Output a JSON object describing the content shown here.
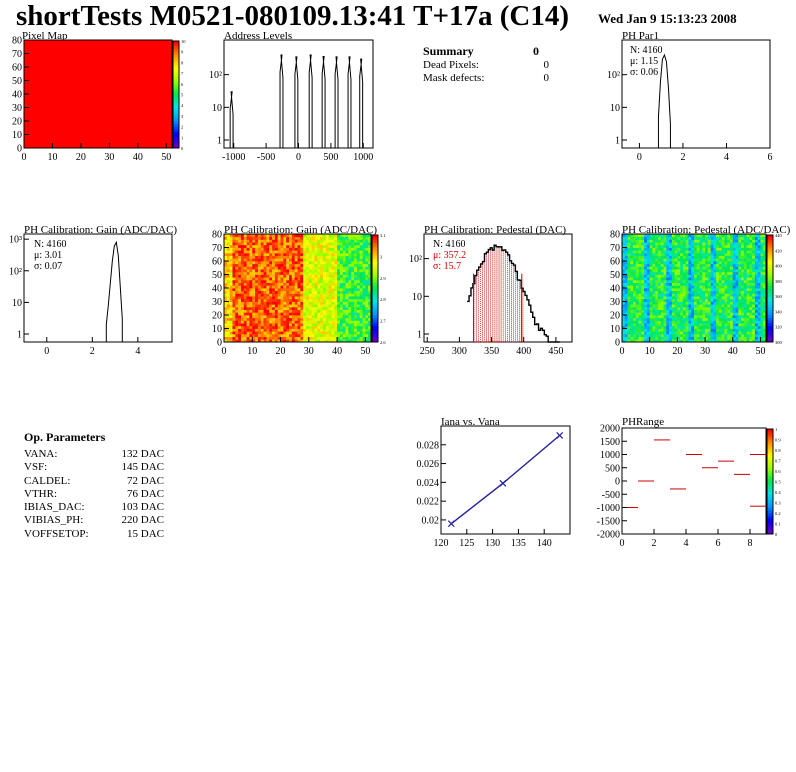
{
  "header": {
    "title": "shortTests M0521-080109.13:41 T+17a (C14)",
    "date": "Wed Jan  9 15:13:23 2008"
  },
  "summary": {
    "title": "Summary",
    "title_value": "0",
    "rows": [
      {
        "label": "Dead Pixels:",
        "value": "0"
      },
      {
        "label": "Mask defects:",
        "value": "0"
      }
    ]
  },
  "op_params": {
    "title": "Op. Parameters",
    "rows": [
      {
        "label": "VANA:",
        "value": "132 DAC"
      },
      {
        "label": "VSF:",
        "value": "145 DAC"
      },
      {
        "label": "CALDEL:",
        "value": "72 DAC"
      },
      {
        "label": "VTHR:",
        "value": "76 DAC"
      },
      {
        "label": "IBIAS_DAC:",
        "value": "103 DAC"
      },
      {
        "label": "VIBIAS_PH:",
        "value": "220 DAC"
      },
      {
        "label": "VOFFSETOP:",
        "value": "15 DAC"
      }
    ]
  },
  "colors": {
    "red": "#ff0000",
    "blue": "#2020a0",
    "darkred": "#cc0000"
  },
  "chart_data": [
    {
      "id": "pixelmap",
      "type": "heatmap",
      "title": "Pixel Map",
      "xlim": [
        0,
        52
      ],
      "ylim": [
        0,
        80
      ],
      "xticks": [
        "0",
        "10",
        "20",
        "30",
        "40",
        "50"
      ],
      "yticks": [
        "0",
        "10",
        "20",
        "30",
        "40",
        "50",
        "60",
        "70",
        "80"
      ],
      "value": 10,
      "zticks": [
        "10",
        "9",
        "8",
        "7",
        "6",
        "5",
        "4",
        "3",
        "2",
        "1",
        "0"
      ]
    },
    {
      "id": "addrlevels",
      "type": "line",
      "title": "Address Levels",
      "log_y": true,
      "xticks": [
        "-1000",
        "-500",
        "0",
        "500",
        "1000"
      ],
      "yticks": [
        "1",
        "10",
        "10²"
      ],
      "peaks": [
        -1030,
        -260,
        -30,
        190,
        390,
        590,
        790,
        970
      ],
      "peak_values": [
        30,
        400,
        350,
        400,
        360,
        350,
        350,
        300
      ]
    },
    {
      "id": "phpar1",
      "type": "line",
      "title": "PH Par1",
      "log_y": true,
      "xticks": [
        "0",
        "2",
        "4",
        "6"
      ],
      "yticks": [
        "1",
        "10",
        "10²"
      ],
      "stats": [
        "N: 4160",
        "μ: 1.15",
        "σ: 0.06"
      ],
      "peak_x": 1.15,
      "peak_value": 400
    },
    {
      "id": "gain1d",
      "type": "line",
      "title": "PH Calibration: Gain (ADC/DAC)",
      "log_y": true,
      "xticks": [
        "0",
        "2",
        "4"
      ],
      "yticks": [
        "1",
        "10",
        "10²",
        "10³"
      ],
      "stats": [
        "N: 4160",
        "μ: 3.01",
        "σ: 0.07"
      ],
      "peak_x": 3.01,
      "peak_value": 800
    },
    {
      "id": "gain2d",
      "type": "heatmap",
      "title": "PH Calibration: Gain (ADC/DAC)",
      "xlim": [
        0,
        52
      ],
      "ylim": [
        0,
        80
      ],
      "xticks": [
        "0",
        "10",
        "20",
        "30",
        "40",
        "50"
      ],
      "yticks": [
        "0",
        "10",
        "20",
        "30",
        "40",
        "50",
        "60",
        "70",
        "80"
      ],
      "zticks": [
        "3.1",
        "3",
        "2.9",
        "2.8",
        "2.7",
        "2.6"
      ]
    },
    {
      "id": "pedestal1d",
      "type": "line",
      "title": "PH Calibration: Pedestal (DAC)",
      "log_y": true,
      "xticks": [
        "250",
        "300",
        "350",
        "400",
        "450"
      ],
      "yticks": [
        "1",
        "10",
        "10²"
      ],
      "stats": [
        "N: 4160"
      ],
      "fit_stats": [
        "μ: 357.2",
        "σ: 15.7"
      ],
      "mean": 357.2,
      "sigma": 15.7,
      "cut_low": 322,
      "cut_high": 397
    },
    {
      "id": "pedestal2d",
      "type": "heatmap",
      "title": "PH Calibration: Pedestal (ADC/DAC)",
      "xlim": [
        0,
        52
      ],
      "ylim": [
        0,
        80
      ],
      "xticks": [
        "0",
        "10",
        "20",
        "30",
        "40",
        "50"
      ],
      "yticks": [
        "0",
        "10",
        "20",
        "30",
        "40",
        "50",
        "60",
        "70",
        "80"
      ],
      "zticks": [
        "440",
        "420",
        "400",
        "380",
        "360",
        "340",
        "320",
        "300"
      ]
    },
    {
      "id": "ianavana",
      "type": "line",
      "title": "Iana vs. Vana",
      "x": [
        122,
        132,
        143
      ],
      "y": [
        0.0196,
        0.0239,
        0.029
      ],
      "xlim": [
        120,
        145
      ],
      "ylim": [
        0.0185,
        0.03
      ],
      "xticks": [
        "120",
        "125",
        "130",
        "135",
        "140"
      ],
      "yticks": [
        "0.02",
        "0.022",
        "0.024",
        "0.026",
        "0.028"
      ]
    },
    {
      "id": "phrange",
      "type": "scatter",
      "title": "PHRange",
      "xlim": [
        0,
        9
      ],
      "ylim": [
        -2000,
        2000
      ],
      "xticks": [
        "0",
        "2",
        "4",
        "6",
        "8"
      ],
      "yticks": [
        "2000",
        "1500",
        "1000",
        "500",
        "0",
        "-500",
        "-1000",
        "-1500",
        "-2000"
      ],
      "segments": [
        [
          0,
          -1000
        ],
        [
          1,
          0
        ],
        [
          2,
          1550
        ],
        [
          3,
          -300
        ],
        [
          4,
          1000
        ],
        [
          5,
          500
        ],
        [
          6,
          750
        ],
        [
          7,
          250
        ],
        [
          8,
          1000
        ],
        [
          8,
          -950
        ]
      ],
      "zticks": [
        "1",
        "0.9",
        "0.8",
        "0.7",
        "0.6",
        "0.5",
        "0.4",
        "0.3",
        "0.2",
        "0.1",
        "0"
      ]
    }
  ]
}
